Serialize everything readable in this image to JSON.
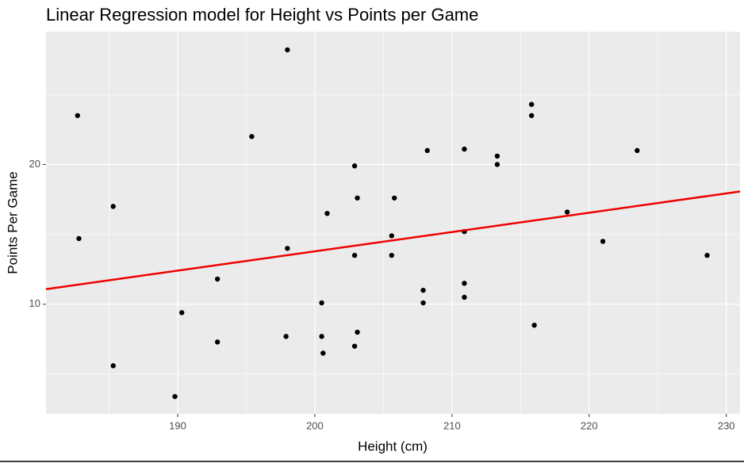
{
  "chart_data": {
    "type": "scatter",
    "title": "Linear Regression model for Height vs Points per Game",
    "x_label": "Height (cm)",
    "y_label": "Points Per Game",
    "xlim": [
      180.4,
      231.0
    ],
    "ylim": [
      2.16,
      29.5
    ],
    "xticks": [
      190,
      200,
      210,
      220,
      230
    ],
    "yticks": [
      10,
      20
    ],
    "grid": true,
    "color": "#000000",
    "x": [
      182.7,
      182.8,
      185.3,
      185.3,
      189.8,
      190.3,
      192.9,
      192.9,
      195.4,
      198.0,
      198.0,
      197.9,
      200.5,
      200.5,
      200.6,
      200.9,
      202.9,
      202.9,
      202.9,
      203.1,
      203.1,
      205.6,
      205.6,
      205.8,
      207.9,
      207.9,
      208.2,
      210.9,
      210.9,
      210.9,
      210.9,
      213.3,
      213.3,
      215.8,
      215.8,
      216.0,
      218.4,
      221.0,
      223.5,
      228.6
    ],
    "values": [
      23.5,
      14.7,
      17.0,
      5.6,
      3.4,
      9.4,
      11.8,
      7.3,
      22.0,
      28.2,
      14.0,
      7.7,
      10.1,
      7.7,
      6.5,
      16.5,
      19.9,
      13.5,
      7.0,
      17.6,
      8.0,
      14.9,
      13.5,
      17.6,
      11.0,
      10.1,
      21.0,
      21.1,
      15.2,
      11.5,
      10.5,
      20.6,
      20.0,
      24.3,
      23.5,
      8.5,
      16.6,
      14.5,
      21.0,
      13.5
    ],
    "fit": {
      "color": "#ee0000",
      "x": [
        180.4,
        231.0
      ],
      "values": [
        11.08,
        18.07
      ]
    }
  }
}
